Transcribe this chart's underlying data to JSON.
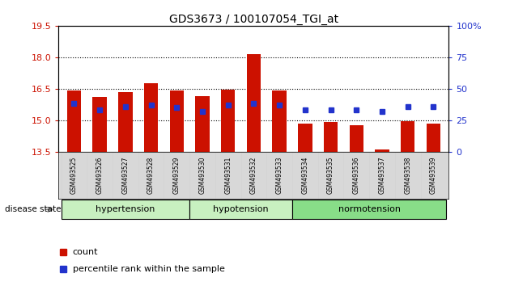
{
  "title": "GDS3673 / 100107054_TGI_at",
  "samples": [
    "GSM493525",
    "GSM493526",
    "GSM493527",
    "GSM493528",
    "GSM493529",
    "GSM493530",
    "GSM493531",
    "GSM493532",
    "GSM493533",
    "GSM493534",
    "GSM493535",
    "GSM493536",
    "GSM493537",
    "GSM493538",
    "GSM493539"
  ],
  "count_values": [
    16.4,
    16.1,
    16.35,
    16.75,
    16.4,
    16.15,
    16.45,
    18.15,
    16.4,
    14.85,
    14.9,
    14.75,
    13.6,
    14.95,
    14.85
  ],
  "percentile_values": [
    38,
    33,
    36,
    37,
    35,
    32,
    37,
    38,
    37,
    33,
    33,
    33,
    32,
    36,
    36
  ],
  "group_labels": [
    "hypertension",
    "hypotension",
    "normotension"
  ],
  "group_starts": [
    0,
    5,
    9
  ],
  "group_ends": [
    5,
    9,
    15
  ],
  "group_colors": [
    "#c8f0c0",
    "#c8f0c0",
    "#88dd88"
  ],
  "y_min": 13.5,
  "y_max": 19.5,
  "y_ticks": [
    13.5,
    15.0,
    16.5,
    18.0,
    19.5
  ],
  "y2_ticks": [
    0,
    25,
    50,
    75,
    100
  ],
  "bar_color": "#cc1100",
  "dot_color": "#2233cc",
  "background_color": "#ffffff",
  "disease_state_label": "disease state"
}
